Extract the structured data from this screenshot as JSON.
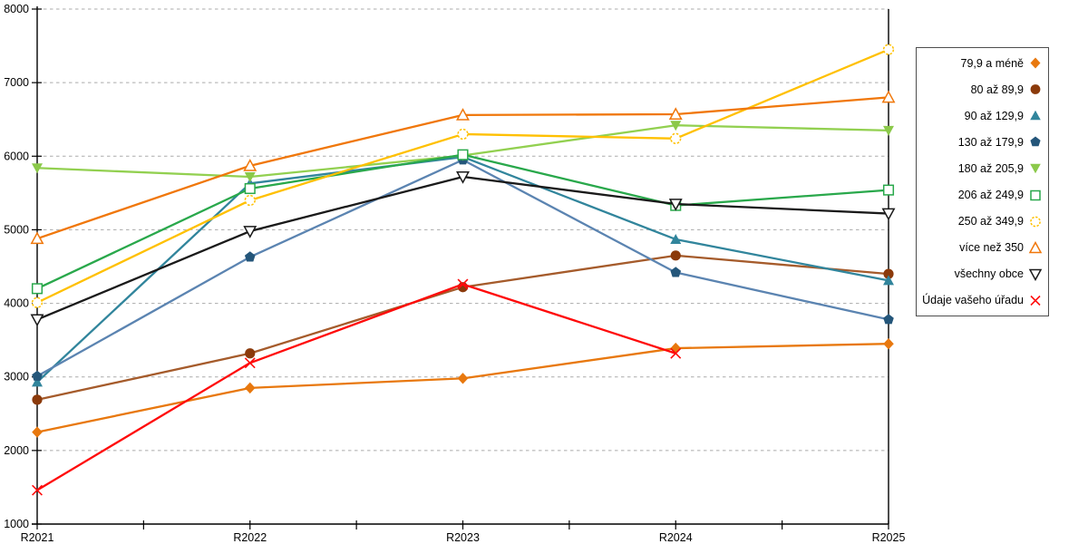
{
  "chart_data": {
    "type": "line",
    "title": "",
    "xlabel": "",
    "ylabel": "",
    "x_labels": [
      "R2021",
      "R2022",
      "R2023",
      "R2024",
      "R2025"
    ],
    "y_ticks": [
      1000,
      2000,
      3000,
      4000,
      5000,
      6000,
      7000,
      8000
    ],
    "ylim": [
      1000,
      8000
    ],
    "grid": "horizontal-dashed",
    "grid_color": "#ababab",
    "axis_color": "#000000",
    "legend_position": "right",
    "series": [
      {
        "name": "79,9 a méně",
        "marker": "diamond",
        "color": "#e8780e",
        "marker_color": "#e8780e",
        "values": [
          2250,
          2850,
          2980,
          3390,
          3450
        ]
      },
      {
        "name": "80 až 89,9",
        "marker": "circle",
        "color": "#a55b2b",
        "marker_color": "#8b3a0b",
        "values": [
          2690,
          3320,
          4220,
          4650,
          4400
        ]
      },
      {
        "name": "90 až 129,9",
        "marker": "triangle-up",
        "color": "#31859c",
        "marker_color": "#31859c",
        "values": [
          2930,
          5630,
          5990,
          4870,
          4310
        ]
      },
      {
        "name": "130 až 179,9",
        "marker": "pentagon",
        "color": "#5b84b1",
        "marker_color": "#24567a",
        "values": [
          3010,
          4630,
          5950,
          4420,
          3780
        ]
      },
      {
        "name": "180 až 205,9",
        "marker": "triangle-down",
        "color": "#92d050",
        "marker_color": "#8bc94a",
        "values": [
          5840,
          5720,
          6010,
          6420,
          6350
        ]
      },
      {
        "name": "206 až 249,9",
        "marker": "square-open",
        "color": "#29a84b",
        "marker_color": "#29a84b",
        "values": [
          4200,
          5560,
          6020,
          5330,
          5540
        ]
      },
      {
        "name": "250 až 349,9",
        "marker": "circle-open",
        "color": "#ffc000",
        "marker_color": "#ffc000",
        "values": [
          4010,
          5400,
          6300,
          6240,
          7450
        ]
      },
      {
        "name": "více než 350",
        "marker": "triangle-up-open",
        "color": "#f0770a",
        "marker_color": "#f0770a",
        "values": [
          4880,
          5870,
          6560,
          6570,
          6800
        ]
      },
      {
        "name": "všechny obce",
        "marker": "triangle-down-open",
        "color": "#1a1a1a",
        "marker_color": "#1a1a1a",
        "values": [
          3780,
          4980,
          5720,
          5350,
          5220
        ]
      },
      {
        "name": "Údaje vašeho úřadu",
        "marker": "x",
        "color": "#ff0a0a",
        "marker_color": "#ff0a0a",
        "values": [
          1460,
          3190,
          4260,
          3320,
          null
        ]
      }
    ]
  }
}
